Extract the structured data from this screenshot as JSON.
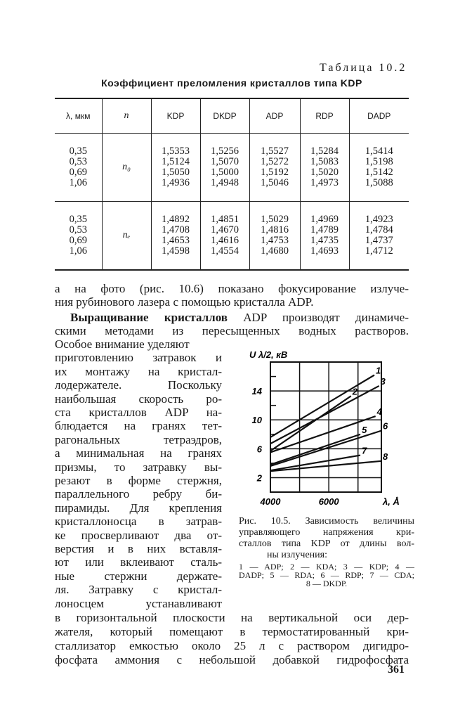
{
  "table": {
    "number": "Таблица 10.2",
    "title": "Коэффициент преломления кристаллов типа KDP",
    "headers": [
      "λ, мкм",
      "n",
      "KDP",
      "DKDP",
      "ADP",
      "RDP",
      "DADP"
    ],
    "groups": [
      {
        "n": "n₀",
        "wavelengths": [
          "0,35",
          "0,53",
          "0,69",
          "1,06"
        ],
        "columns": [
          [
            "1,5353",
            "1,5124",
            "1,5050",
            "1,4936"
          ],
          [
            "1,5256",
            "1,5070",
            "1,5000",
            "1,4948"
          ],
          [
            "1,5527",
            "1,5272",
            "1,5192",
            "1,5046"
          ],
          [
            "1,5284",
            "1,5083",
            "1,5020",
            "1,4973"
          ],
          [
            "1,5414",
            "1,5198",
            "1,5142",
            "1,5088"
          ]
        ]
      },
      {
        "n": "nₑ",
        "wavelengths": [
          "0,35",
          "0,53",
          "0,69",
          "1,06"
        ],
        "columns": [
          [
            "1,4892",
            "1,4708",
            "1,4653",
            "1,4598"
          ],
          [
            "1,4851",
            "1,4670",
            "1,4616",
            "1,4554"
          ],
          [
            "1,5029",
            "1,4816",
            "1,4753",
            "1,4680"
          ],
          [
            "1,4969",
            "1,4789",
            "1,4735",
            "1,4693"
          ],
          [
            "1,4923",
            "1,4784",
            "1,4737",
            "1,4712"
          ]
        ]
      }
    ]
  },
  "text": {
    "full_lines_top": [
      "а на фото (рис. 10.6) показано фокусирование излуче-",
      "ния рубинового лазера с помощью кристалла ADP."
    ],
    "para2_bold": "Выращивание кристаллов",
    "para2_rest": " ADP производят динамиче-",
    "para2_line2": "скими методами из пересыщенных водных растворов.",
    "column_lines": [
      "Особое внимание уделяют",
      "приготовлению затравок и",
      "их монтажу на кристал-",
      "лодержателе. Поскольку",
      "наибольшая скорость ро-",
      "ста кристаллов ADP на-",
      "блюдается на гранях тет-",
      "рагональных тетраэдров,",
      "а минимальная на гранях",
      "призмы, то затравку вы-",
      "резают в форме стержня,",
      "параллельного ребру би-",
      "пирамиды. Для крепления",
      "кристаллоносца в затрав-",
      "ке просверливают два от-",
      "верстия и в них вставля-",
      "ют или вклеивают сталь-",
      "ные стержни держате-",
      "ля. Затравку с кристал-",
      "лоносцем устанавливают"
    ],
    "full_lines_bottom": [
      "в горизонтальной плоскости на вертикальной оси дер-",
      "жателя, который помещают в термостатированный кри-",
      "сталлизатор емкостью около 25 л с раствором дигидро-",
      "фосфата аммония с небольшой добавкой гидрофосфата"
    ],
    "page_number": "361"
  },
  "figure": {
    "caption_lines": [
      "Рис. 10.5. Зависимость величины",
      "управляющего напряжения кри-",
      "сталлов типа KDP от длины вол-",
      "ны излучения:"
    ],
    "legend_lines": [
      "1 — ADP;  2 — KDA;  3 — KDP;  4 —",
      "DADP;  5 — RDA;  6 — RDP;  7 — CDA;",
      "8 — DKDP."
    ]
  },
  "chart_data": {
    "type": "line",
    "xlabel": "λ, Å",
    "ylabel": "U λ/2, кВ",
    "xlim": [
      4000,
      7800
    ],
    "ylim": [
      0,
      18
    ],
    "xticks": [
      4000,
      6000
    ],
    "yticks": [
      2,
      6,
      10,
      14
    ],
    "grid": true,
    "series": [
      {
        "label": "1",
        "x": [
          4000,
          7560
        ],
        "y": [
          7.6,
          16.2
        ]
      },
      {
        "label": "2",
        "x": [
          4000,
          6760
        ],
        "y": [
          5.7,
          13.3
        ]
      },
      {
        "label": "3",
        "x": [
          4000,
          7720
        ],
        "y": [
          6.7,
          14.7
        ]
      },
      {
        "label": "4",
        "x": [
          4000,
          7600
        ],
        "y": [
          5.5,
          10.5
        ]
      },
      {
        "label": "5",
        "x": [
          4000,
          7080
        ],
        "y": [
          3.8,
          8.0
        ]
      },
      {
        "label": "6",
        "x": [
          4000,
          7800
        ],
        "y": [
          3.6,
          8.5
        ]
      },
      {
        "label": "7",
        "x": [
          4000,
          7080
        ],
        "y": [
          3.0,
          5.1
        ]
      },
      {
        "label": "8",
        "x": [
          4000,
          7800
        ],
        "y": [
          2.9,
          4.3
        ]
      }
    ]
  }
}
